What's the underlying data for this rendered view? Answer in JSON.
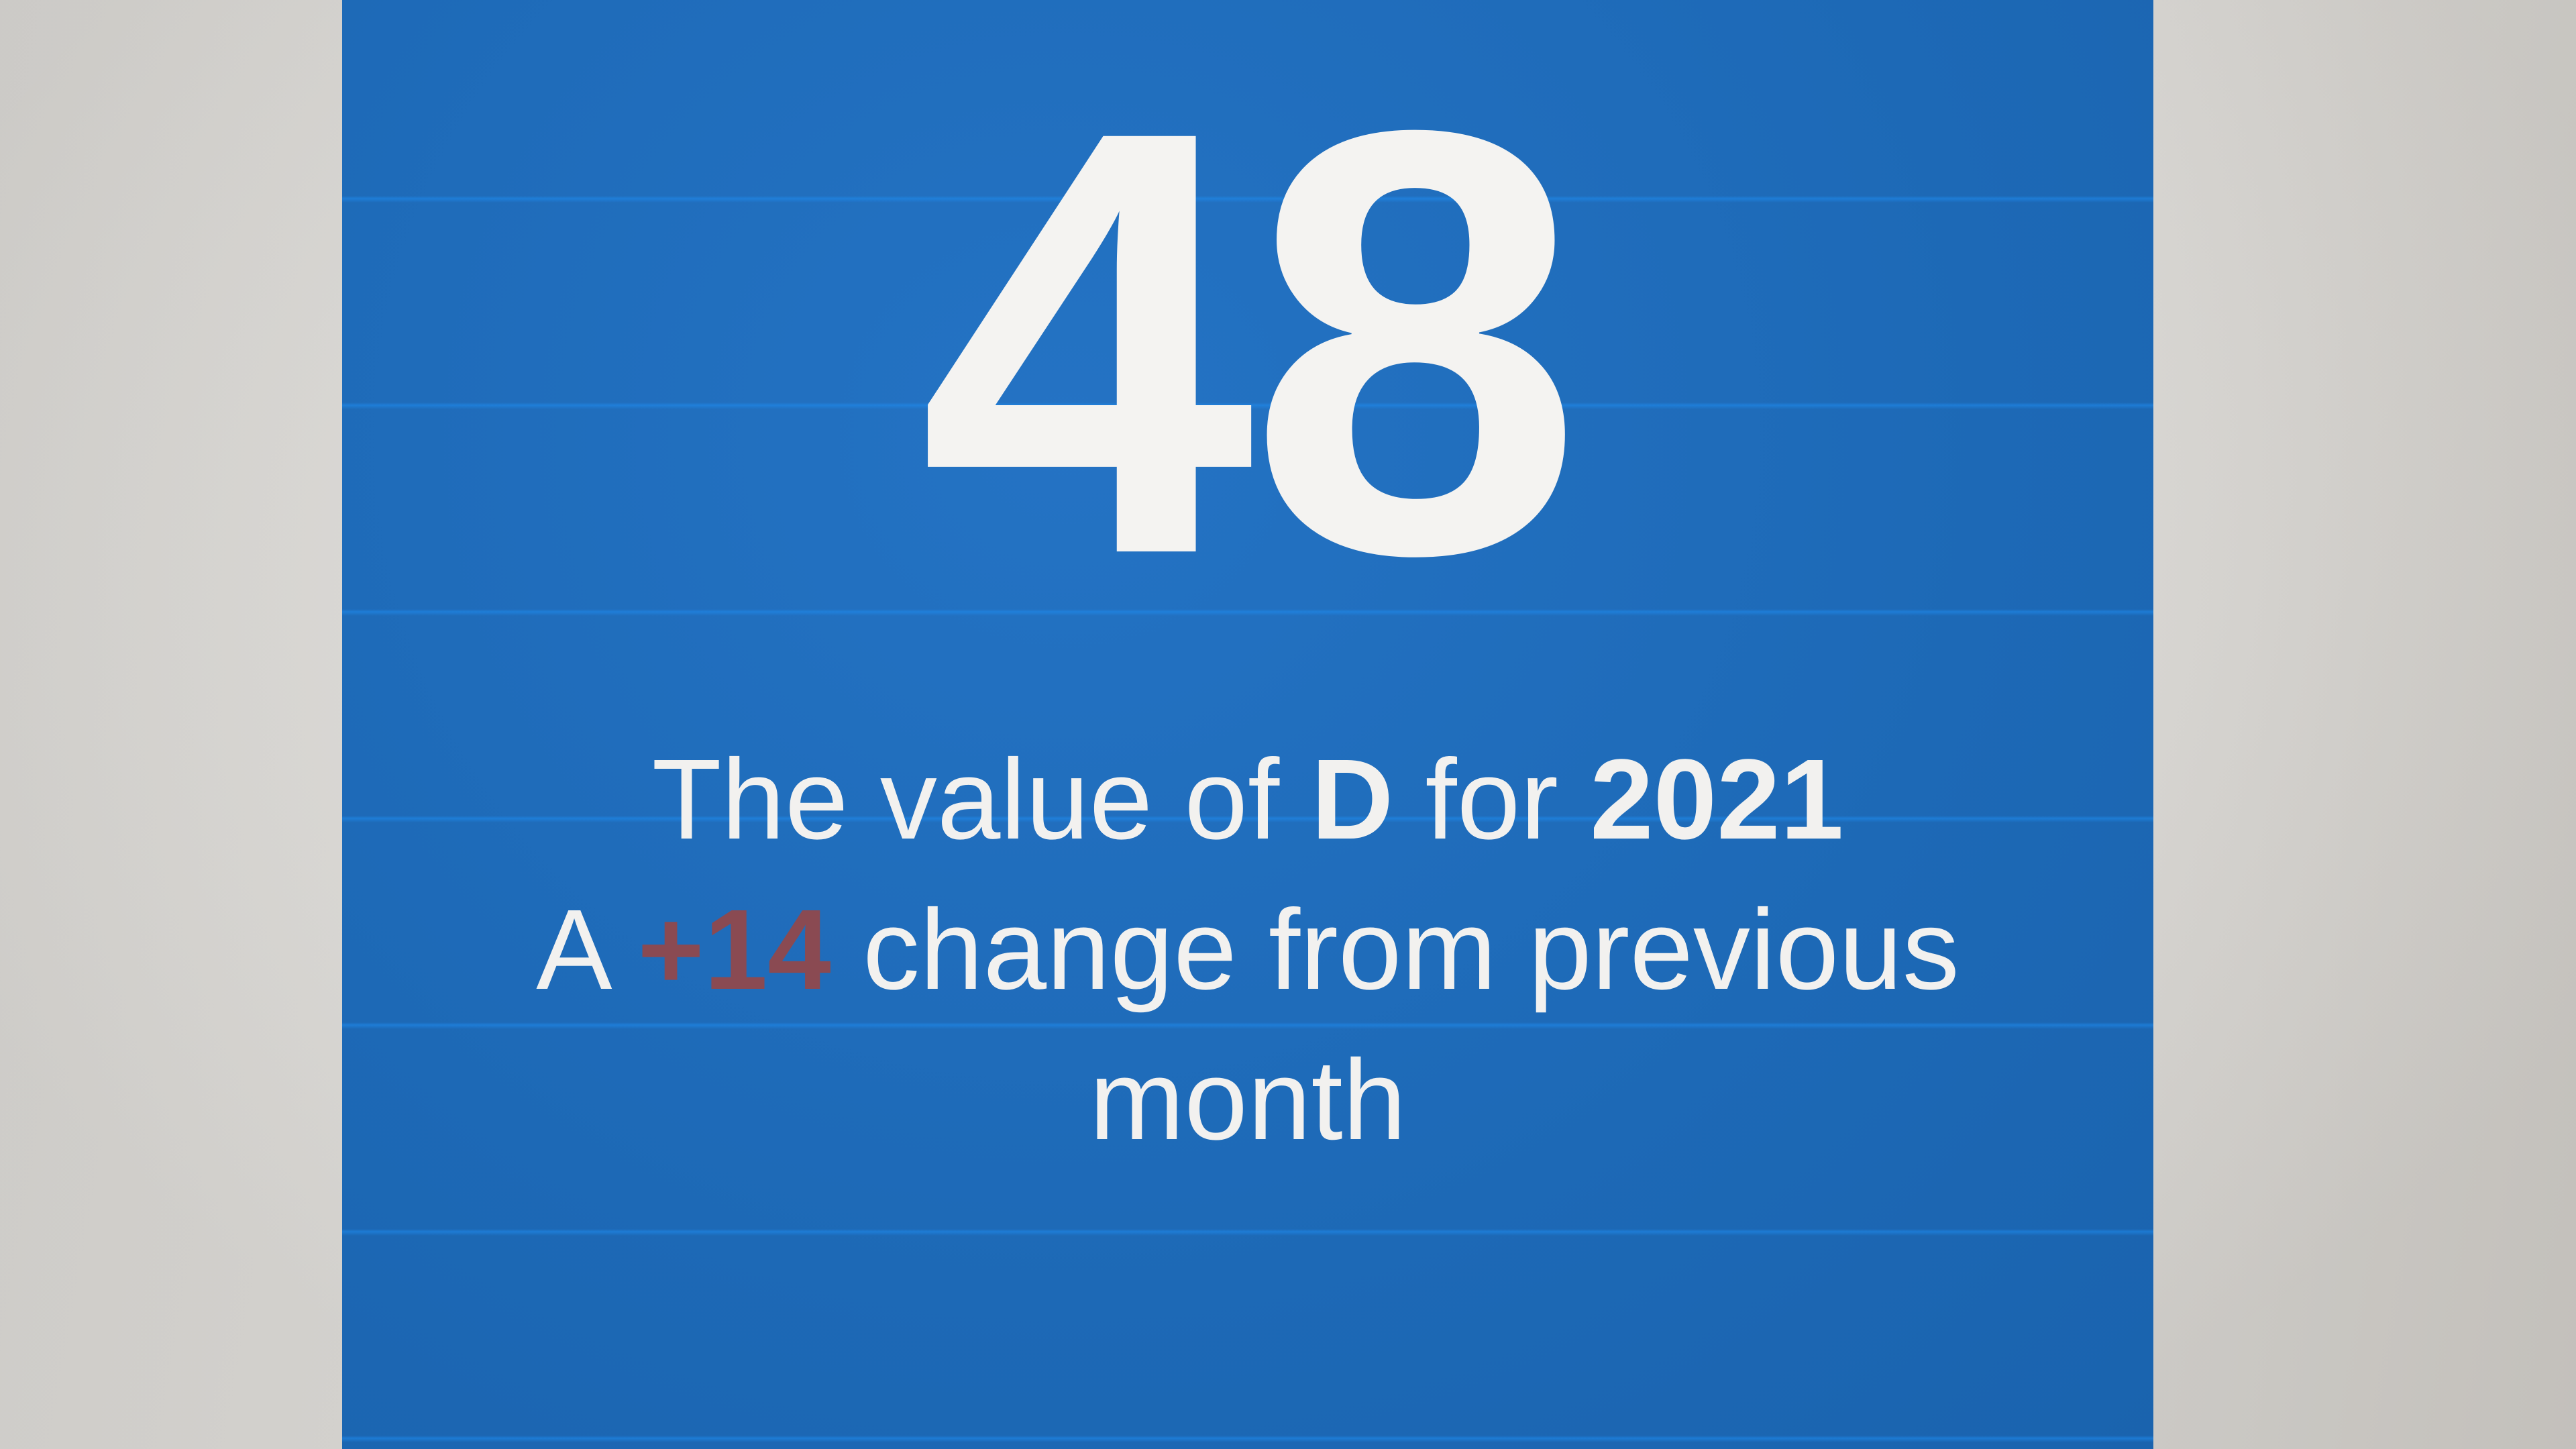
{
  "card": {
    "value": "48",
    "line1": {
      "prefix": "The value of ",
      "series": "D",
      "middle": " for ",
      "year": "2021"
    },
    "line2": {
      "prefix": "A ",
      "delta": "+14",
      "suffix": " change from previous"
    },
    "line3": "month",
    "colors": {
      "card_background": "#1f6fbe",
      "text": "#f2f1ef",
      "delta_text": "#8a4a52"
    }
  }
}
